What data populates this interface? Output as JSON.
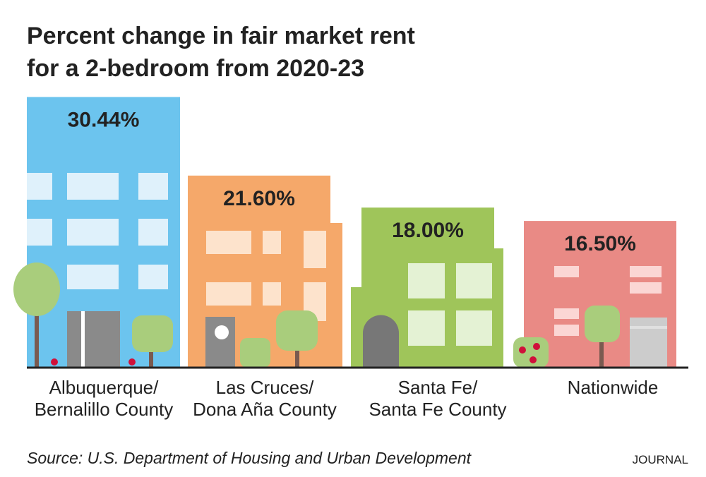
{
  "chart_data": {
    "type": "bar",
    "title": [
      "Percent change in fair market rent",
      "for a 2-bedroom from 2020-23"
    ],
    "categories": [
      [
        "Albuquerque/",
        "Bernalillo County"
      ],
      [
        "Las Cruces/",
        "Dona Aña County"
      ],
      [
        "Santa Fe/",
        "Santa Fe County"
      ],
      [
        "Nationwide"
      ]
    ],
    "values": [
      30.44,
      21.6,
      18.0,
      16.5
    ],
    "value_labels": [
      "30.44%",
      "21.60%",
      "18.00%",
      "16.50%"
    ],
    "colors": [
      "#6cc4ee",
      "#f5a86a",
      "#9fc55a",
      "#e98a85"
    ],
    "source": "Source: U.S. Department of Housing and Urban Development",
    "credit": "JOURNAL"
  }
}
